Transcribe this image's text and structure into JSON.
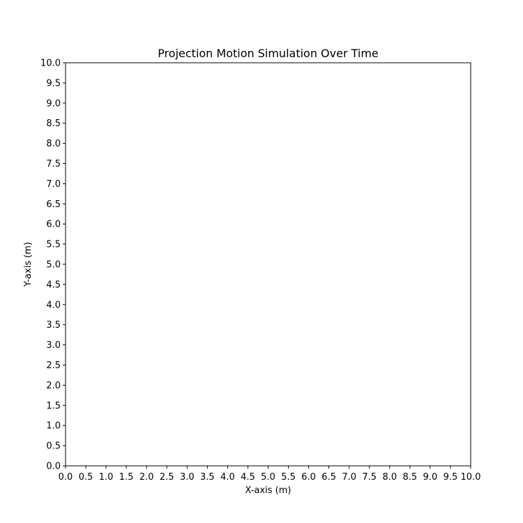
{
  "chart_data": {
    "type": "scatter",
    "title": "Projection Motion Simulation Over Time",
    "xlabel": "X-axis (m)",
    "ylabel": "Y-axis (m)",
    "xlim": [
      0.0,
      10.0
    ],
    "ylim": [
      0.0,
      10.0
    ],
    "xticks": [
      "0.0",
      "0.5",
      "1.0",
      "1.5",
      "2.0",
      "2.5",
      "3.0",
      "3.5",
      "4.0",
      "4.5",
      "5.0",
      "5.5",
      "6.0",
      "6.5",
      "7.0",
      "7.5",
      "8.0",
      "8.5",
      "9.0",
      "9.5",
      "10.0"
    ],
    "yticks": [
      "0.0",
      "0.5",
      "1.0",
      "1.5",
      "2.0",
      "2.5",
      "3.0",
      "3.5",
      "4.0",
      "4.5",
      "5.0",
      "5.5",
      "6.0",
      "6.5",
      "7.0",
      "7.5",
      "8.0",
      "8.5",
      "9.0",
      "9.5",
      "10.0"
    ],
    "grid": false,
    "series": []
  }
}
